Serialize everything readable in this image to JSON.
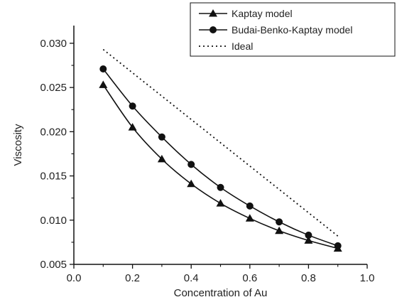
{
  "chart_data": {
    "type": "line",
    "xlabel": "Concentration of Au",
    "ylabel": "Viscosity",
    "xlim": [
      0.0,
      1.0
    ],
    "ylim": [
      0.005,
      0.032
    ],
    "xticks": [
      0.0,
      0.2,
      0.4,
      0.6,
      0.8,
      1.0
    ],
    "xtick_labels": [
      "0.0",
      "0.2",
      "0.4",
      "0.6",
      "0.8",
      "1.0"
    ],
    "yticks": [
      0.005,
      0.01,
      0.015,
      0.02,
      0.025,
      0.03
    ],
    "ytick_labels": [
      "0.005",
      "0.010",
      "0.015",
      "0.020",
      "0.025",
      "0.030"
    ],
    "grid": false,
    "legend_position": "top-right",
    "series": [
      {
        "name": "Kaptay model",
        "marker": "triangle",
        "line_style": "solid",
        "color": "#111111",
        "x": [
          0.1,
          0.2,
          0.3,
          0.4,
          0.5,
          0.6,
          0.7,
          0.8,
          0.9
        ],
        "y": [
          0.0253,
          0.0205,
          0.0169,
          0.0141,
          0.0119,
          0.0102,
          0.0088,
          0.0077,
          0.0068
        ]
      },
      {
        "name": "Budai-Benko-Kaptay model",
        "marker": "circle",
        "line_style": "solid",
        "color": "#111111",
        "x": [
          0.1,
          0.2,
          0.3,
          0.4,
          0.5,
          0.6,
          0.7,
          0.8,
          0.9
        ],
        "y": [
          0.0271,
          0.0229,
          0.0194,
          0.0163,
          0.0137,
          0.0116,
          0.0098,
          0.0083,
          0.0071
        ]
      },
      {
        "name": "Ideal",
        "marker": "none",
        "line_style": "dotted",
        "color": "#111111",
        "x": [
          0.1,
          0.9
        ],
        "y": [
          0.0293,
          0.0082
        ]
      }
    ]
  }
}
